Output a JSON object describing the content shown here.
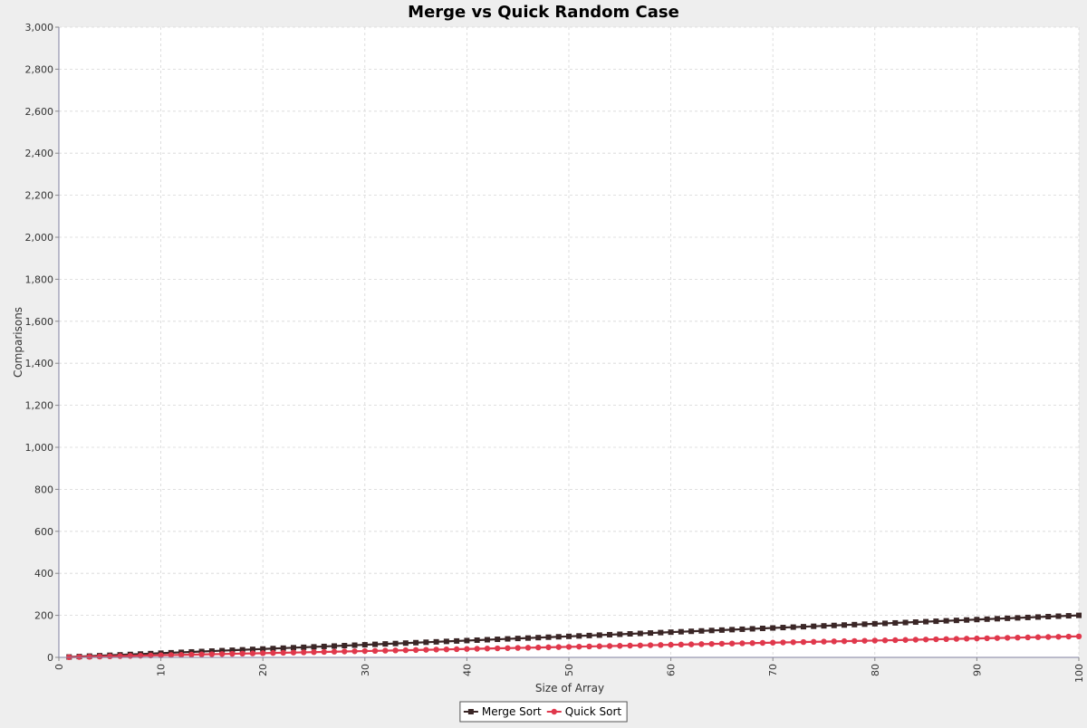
{
  "chart_data": {
    "type": "line",
    "title": "Merge vs Quick Random Case",
    "xlabel": "Size of Array",
    "ylabel": "Comparisons",
    "xlim": [
      0,
      100
    ],
    "ylim": [
      0,
      3000
    ],
    "x_ticks": [
      "0",
      "10",
      "20",
      "30",
      "40",
      "50",
      "60",
      "70",
      "80",
      "90",
      "100"
    ],
    "y_ticks": [
      "0",
      "200",
      "400",
      "600",
      "800",
      "1,000",
      "1,200",
      "1,400",
      "1,600",
      "1,800",
      "2,000",
      "2,200",
      "2,400",
      "2,600",
      "2,800",
      "3,000"
    ],
    "grid": true,
    "legend_position": "bottom",
    "x": [
      1,
      2,
      3,
      4,
      5,
      6,
      7,
      8,
      9,
      10,
      11,
      12,
      13,
      14,
      15,
      16,
      17,
      18,
      19,
      20,
      21,
      22,
      23,
      24,
      25,
      26,
      27,
      28,
      29,
      30,
      31,
      32,
      33,
      34,
      35,
      36,
      37,
      38,
      39,
      40,
      41,
      42,
      43,
      44,
      45,
      46,
      47,
      48,
      49,
      50,
      51,
      52,
      53,
      54,
      55,
      56,
      57,
      58,
      59,
      60,
      61,
      62,
      63,
      64,
      65,
      66,
      67,
      68,
      69,
      70,
      71,
      72,
      73,
      74,
      75,
      76,
      77,
      78,
      79,
      80,
      81,
      82,
      83,
      84,
      85,
      86,
      87,
      88,
      89,
      90,
      91,
      92,
      93,
      94,
      95,
      96,
      97,
      98,
      99,
      100
    ],
    "series": [
      {
        "name": "Merge Sort",
        "color": "#3a2626",
        "marker": "square",
        "values": [
          2,
          4,
          6,
          8,
          10,
          12,
          14,
          16,
          18,
          20,
          22,
          24,
          26,
          28,
          30,
          32,
          34,
          36,
          38,
          40,
          42,
          44,
          46,
          48,
          50,
          52,
          54,
          56,
          58,
          60,
          62,
          64,
          66,
          68,
          70,
          72,
          74,
          76,
          78,
          80,
          82,
          84,
          86,
          88,
          90,
          92,
          94,
          96,
          98,
          100,
          102,
          104,
          106,
          108,
          110,
          112,
          114,
          116,
          118,
          120,
          122,
          124,
          126,
          128,
          130,
          132,
          134,
          136,
          138,
          140,
          142,
          144,
          146,
          148,
          150,
          152,
          154,
          156,
          158,
          160,
          162,
          164,
          166,
          168,
          170,
          172,
          174,
          176,
          178,
          180,
          182,
          184,
          186,
          188,
          190,
          192,
          194,
          196,
          198,
          200
        ]
      },
      {
        "name": "Quick Sort",
        "color": "#e0384c",
        "marker": "circle",
        "values": [
          1,
          2,
          3,
          4,
          5,
          6,
          7,
          8,
          9,
          10,
          11,
          12,
          13,
          14,
          15,
          16,
          17,
          18,
          19,
          20,
          21,
          22,
          23,
          24,
          25,
          26,
          27,
          28,
          29,
          30,
          31,
          32,
          33,
          34,
          35,
          36,
          37,
          38,
          39,
          40,
          41,
          42,
          43,
          44,
          45,
          46,
          47,
          48,
          49,
          50,
          51,
          52,
          53,
          54,
          55,
          56,
          57,
          58,
          59,
          60,
          61,
          62,
          63,
          64,
          65,
          66,
          67,
          68,
          69,
          70,
          71,
          72,
          73,
          74,
          75,
          76,
          77,
          78,
          79,
          80,
          81,
          82,
          83,
          84,
          85,
          86,
          87,
          88,
          89,
          90,
          91,
          92,
          93,
          94,
          95,
          96,
          97,
          98,
          99,
          100
        ]
      }
    ]
  }
}
